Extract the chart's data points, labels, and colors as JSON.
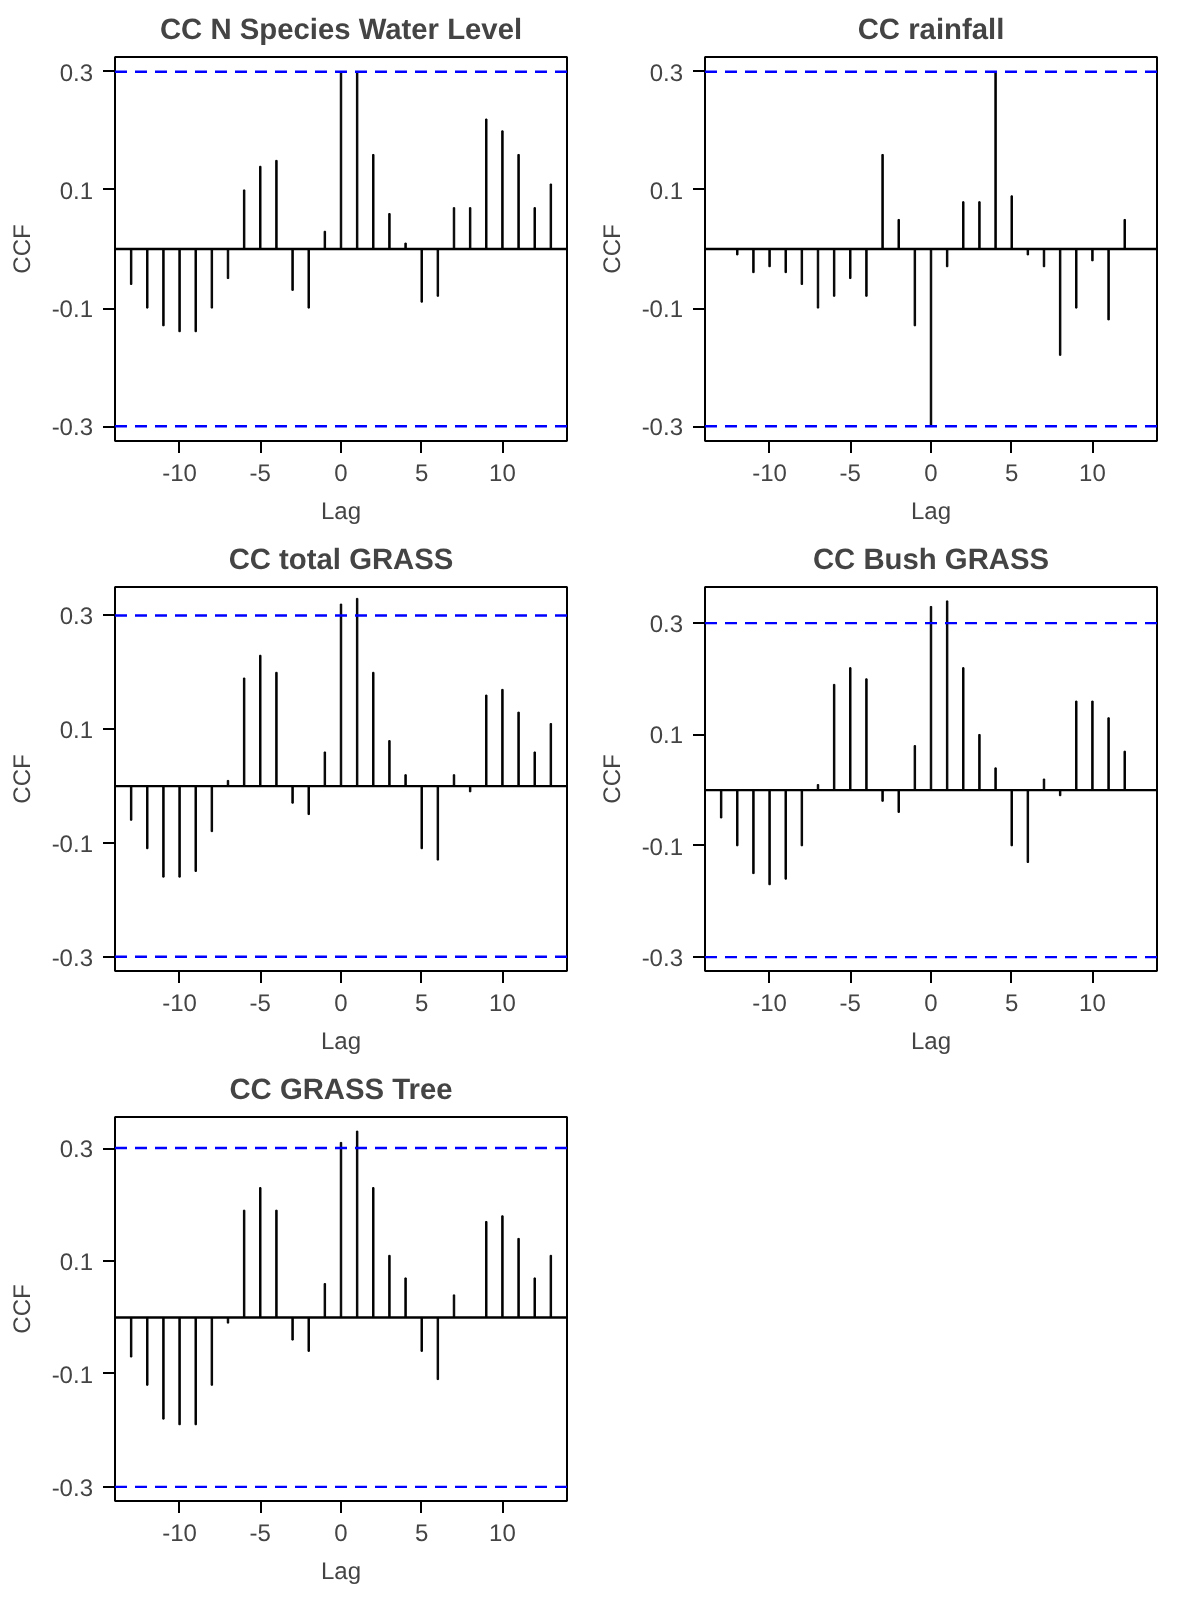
{
  "chart_data": [
    {
      "type": "bar",
      "title": "CC N Species Water Level",
      "xlabel": "Lag",
      "ylabel": "CCF",
      "x": [
        -13,
        -12,
        -11,
        -10,
        -9,
        -8,
        -7,
        -6,
        -5,
        -4,
        -3,
        -2,
        -1,
        0,
        1,
        2,
        3,
        4,
        5,
        6,
        7,
        8,
        9,
        10,
        11,
        12,
        13
      ],
      "series": [
        {
          "color": "#000000",
          "values": [
            -0.06,
            -0.1,
            -0.13,
            -0.14,
            -0.14,
            -0.1,
            -0.05,
            0.1,
            0.14,
            0.15,
            -0.07,
            -0.1,
            0.03,
            0.3,
            0.3,
            0.16,
            0.06,
            0.01,
            -0.09,
            -0.08,
            0.07,
            0.07,
            0.22,
            0.2,
            0.16,
            0.07,
            0.11
          ]
        }
      ],
      "xlim": [
        -14,
        14
      ],
      "ylim": [
        -0.325,
        0.325
      ],
      "xticks": [
        -10,
        -5,
        0,
        5,
        10
      ],
      "yticks": [
        -0.3,
        -0.1,
        0.1,
        0.3
      ],
      "ref_lines": [
        {
          "axis": "y",
          "value": 0,
          "color": "#000000",
          "line_style": "solid"
        },
        {
          "axis": "y",
          "value": 0.3,
          "color": "#0000ff",
          "line_style": "dashed"
        },
        {
          "axis": "y",
          "value": -0.3,
          "color": "#0000ff",
          "line_style": "dashed"
        }
      ],
      "grid": false
    },
    {
      "type": "bar",
      "title": "CC rainfall",
      "xlabel": "Lag",
      "ylabel": "CCF",
      "x": [
        -13,
        -12,
        -11,
        -10,
        -9,
        -8,
        -7,
        -6,
        -5,
        -4,
        -3,
        -2,
        -1,
        0,
        1,
        2,
        3,
        4,
        5,
        6,
        7,
        8,
        9,
        10,
        11,
        12
      ],
      "series": [
        {
          "color": "#000000",
          "values": [
            0,
            -0.01,
            -0.04,
            -0.03,
            -0.04,
            -0.06,
            -0.1,
            -0.08,
            -0.05,
            -0.08,
            0.16,
            0.05,
            -0.13,
            -0.3,
            -0.03,
            0.08,
            0.08,
            0.3,
            0.09,
            -0.01,
            -0.03,
            -0.18,
            -0.1,
            -0.02,
            -0.12,
            0.05
          ]
        }
      ],
      "xlim": [
        -14,
        14
      ],
      "ylim": [
        -0.325,
        0.325
      ],
      "xticks": [
        -10,
        -5,
        0,
        5,
        10
      ],
      "yticks": [
        -0.3,
        -0.1,
        0.1,
        0.3
      ],
      "ref_lines": [
        {
          "axis": "y",
          "value": 0,
          "color": "#000000",
          "line_style": "solid"
        },
        {
          "axis": "y",
          "value": 0.3,
          "color": "#0000ff",
          "line_style": "dashed"
        },
        {
          "axis": "y",
          "value": -0.3,
          "color": "#0000ff",
          "line_style": "dashed"
        }
      ],
      "grid": false
    },
    {
      "type": "bar",
      "title": "CC total GRASS",
      "xlabel": "Lag",
      "ylabel": "CCF",
      "x": [
        -13,
        -12,
        -11,
        -10,
        -9,
        -8,
        -7,
        -6,
        -5,
        -4,
        -3,
        -2,
        -1,
        0,
        1,
        2,
        3,
        4,
        5,
        6,
        7,
        8,
        9,
        10,
        11,
        12,
        13
      ],
      "series": [
        {
          "color": "#000000",
          "values": [
            -0.06,
            -0.11,
            -0.16,
            -0.16,
            -0.15,
            -0.08,
            0.01,
            0.19,
            0.23,
            0.2,
            -0.03,
            -0.05,
            0.06,
            0.32,
            0.33,
            0.2,
            0.08,
            0.02,
            -0.11,
            -0.13,
            0.02,
            -0.01,
            0.16,
            0.17,
            0.13,
            0.06,
            0.11
          ]
        }
      ],
      "xlim": [
        -14,
        14
      ],
      "ylim": [
        -0.325,
        0.35
      ],
      "xticks": [
        -10,
        -5,
        0,
        5,
        10
      ],
      "yticks": [
        -0.3,
        -0.1,
        0.1,
        0.3
      ],
      "ref_lines": [
        {
          "axis": "y",
          "value": 0,
          "color": "#000000",
          "line_style": "solid"
        },
        {
          "axis": "y",
          "value": 0.3,
          "color": "#0000ff",
          "line_style": "dashed"
        },
        {
          "axis": "y",
          "value": -0.3,
          "color": "#0000ff",
          "line_style": "dashed"
        }
      ],
      "grid": false
    },
    {
      "type": "bar",
      "title": "CC Bush GRASS",
      "xlabel": "Lag",
      "ylabel": "CCF",
      "x": [
        -13,
        -12,
        -11,
        -10,
        -9,
        -8,
        -7,
        -6,
        -5,
        -4,
        -3,
        -2,
        -1,
        0,
        1,
        2,
        3,
        4,
        5,
        6,
        7,
        8,
        9,
        10,
        11,
        12
      ],
      "series": [
        {
          "color": "#000000",
          "values": [
            -0.05,
            -0.1,
            -0.15,
            -0.17,
            -0.16,
            -0.1,
            0.01,
            0.19,
            0.22,
            0.2,
            -0.02,
            -0.04,
            0.08,
            0.33,
            0.34,
            0.22,
            0.1,
            0.04,
            -0.1,
            -0.13,
            0.02,
            -0.01,
            0.16,
            0.16,
            0.13,
            0.07
          ]
        }
      ],
      "xlim": [
        -14,
        14
      ],
      "ylim": [
        -0.325,
        0.365
      ],
      "xticks": [
        -10,
        -5,
        0,
        5,
        10
      ],
      "yticks": [
        -0.3,
        -0.1,
        0.1,
        0.3
      ],
      "ref_lines": [
        {
          "axis": "y",
          "value": 0,
          "color": "#000000",
          "line_style": "solid"
        },
        {
          "axis": "y",
          "value": 0.3,
          "color": "#0000ff",
          "line_style": "dashed"
        },
        {
          "axis": "y",
          "value": -0.3,
          "color": "#0000ff",
          "line_style": "dashed"
        }
      ],
      "grid": false
    },
    {
      "type": "bar",
      "title": "CC GRASS Tree",
      "xlabel": "Lag",
      "ylabel": "CCF",
      "x": [
        -13,
        -12,
        -11,
        -10,
        -9,
        -8,
        -7,
        -6,
        -5,
        -4,
        -3,
        -2,
        -1,
        0,
        1,
        2,
        3,
        4,
        5,
        6,
        7,
        8,
        9,
        10,
        11,
        12,
        13
      ],
      "series": [
        {
          "color": "#000000",
          "values": [
            -0.07,
            -0.12,
            -0.18,
            -0.19,
            -0.19,
            -0.12,
            -0.01,
            0.19,
            0.23,
            0.19,
            -0.04,
            -0.06,
            0.06,
            0.31,
            0.33,
            0.23,
            0.11,
            0.07,
            -0.06,
            -0.11,
            0.04,
            0,
            0.17,
            0.18,
            0.14,
            0.07,
            0.11
          ]
        }
      ],
      "xlim": [
        -14,
        14
      ],
      "ylim": [
        -0.325,
        0.355
      ],
      "xticks": [
        -10,
        -5,
        0,
        5,
        10
      ],
      "yticks": [
        -0.3,
        -0.1,
        0.1,
        0.3
      ],
      "ref_lines": [
        {
          "axis": "y",
          "value": 0,
          "color": "#000000",
          "line_style": "solid"
        },
        {
          "axis": "y",
          "value": 0.3,
          "color": "#0000ff",
          "line_style": "dashed"
        },
        {
          "axis": "y",
          "value": -0.3,
          "color": "#0000ff",
          "line_style": "dashed"
        }
      ],
      "grid": false
    }
  ]
}
